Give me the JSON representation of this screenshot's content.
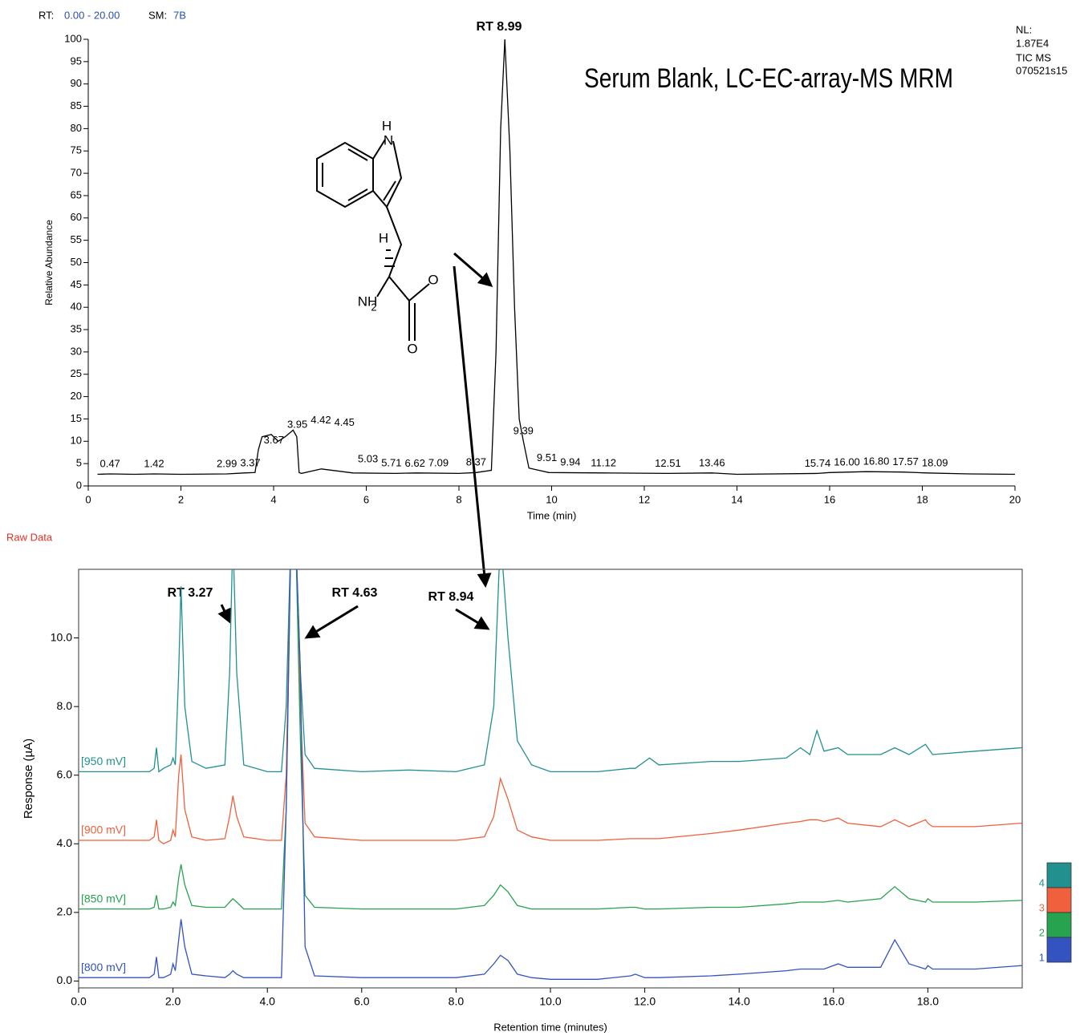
{
  "header": {
    "rt_label": "RT:",
    "rt_range": "0.00 - 20.00",
    "sm_label": "SM:",
    "sm_value": "7B"
  },
  "nl_info": [
    "NL:",
    "1.87E4",
    "TIC  MS",
    "070521s15"
  ],
  "raw_data": "Raw Data",
  "structure": {
    "atoms": [
      "H",
      "N",
      "H",
      "NH",
      "2",
      "O",
      "O"
    ]
  },
  "chart_data": [
    {
      "type": "line",
      "title": "Serum Blank, LC-EC-array-MS MRM",
      "x_label": "Time (min)",
      "y_label": "Relative Abundance",
      "xlim": [
        0,
        20
      ],
      "ylim": [
        0,
        100
      ],
      "xticks": [
        0,
        2,
        4,
        6,
        8,
        10,
        12,
        14,
        16,
        18,
        20
      ],
      "yticks": [
        0,
        5,
        10,
        15,
        20,
        25,
        30,
        35,
        40,
        45,
        50,
        55,
        60,
        65,
        70,
        75,
        80,
        85,
        90,
        95,
        100
      ],
      "annotations": [
        "RT 8.99"
      ],
      "peak_labels": [
        0.47,
        1.42,
        2.99,
        3.37,
        3.67,
        3.95,
        4.42,
        4.45,
        5.03,
        5.71,
        6.62,
        7.09,
        8.37,
        9.39,
        9.51,
        9.94,
        11.12,
        12.51,
        13.46,
        15.74,
        {
          "value": 16,
          "label": "16.00"
        },
        {
          "value": 16.8,
          "label": "16.80"
        },
        17.57,
        18.09
      ],
      "series": [
        {
          "color": "#000000",
          "x": [
            0.2,
            0.47,
            1,
            1.42,
            2,
            2.99,
            3.37,
            3.6,
            3.67,
            3.75,
            3.95,
            4.1,
            4.25,
            4.42,
            4.5,
            4.55,
            4.6,
            5.03,
            5.71,
            6.62,
            7.09,
            8.0,
            8.37,
            8.7,
            8.8,
            8.9,
            8.99,
            9.1,
            9.2,
            9.3,
            9.39,
            9.51,
            9.94,
            11.12,
            12.51,
            13.46,
            14.0,
            15.74,
            16.0,
            16.8,
            17.57,
            18.09,
            19.0,
            20
          ],
          "values": [
            2.6,
            2.7,
            2.6,
            2.7,
            2.6,
            2.7,
            2.9,
            3,
            8,
            11,
            11.5,
            10,
            11,
            12.5,
            11,
            3,
            2.8,
            3.8,
            2.9,
            2.8,
            2.9,
            2.8,
            3,
            3.5,
            30,
            80,
            100,
            75,
            40,
            15,
            10,
            4,
            3,
            2.9,
            2.8,
            2.9,
            2.6,
            2.8,
            3,
            3.2,
            3.1,
            2.9,
            2.7,
            2.6
          ]
        }
      ]
    },
    {
      "type": "line",
      "x_label": "Retention time (minutes)",
      "y_label": "Response (µA)",
      "xlim": [
        0,
        20
      ],
      "ylim": [
        -0.2,
        12
      ],
      "xticks": [
        {
          "value": 0,
          "label": "0.0"
        },
        {
          "value": 2,
          "label": "2.0"
        },
        {
          "value": 4,
          "label": "4.0"
        },
        {
          "value": 6,
          "label": "6.0"
        },
        {
          "value": 8,
          "label": "8.0"
        },
        {
          "value": 10,
          "label": "10.0"
        },
        {
          "value": 12,
          "label": "12.0"
        },
        {
          "value": 14,
          "label": "14.0"
        },
        {
          "value": 16,
          "label": "16.0"
        },
        {
          "value": 18,
          "label": "18.0"
        }
      ],
      "yticks": [
        {
          "value": 0,
          "label": "0.0"
        },
        {
          "value": 2,
          "label": "2.0"
        },
        {
          "value": 4,
          "label": "4.0"
        },
        {
          "value": 6,
          "label": "6.0"
        },
        {
          "value": 8,
          "label": "8.0"
        },
        {
          "value": 10,
          "label": "10.0"
        }
      ],
      "annotations": [
        "RT 3.27",
        "RT 4.63",
        "RT 8.94"
      ],
      "x": [
        0,
        1.5,
        1.6,
        1.65,
        1.7,
        1.8,
        1.95,
        2.0,
        2.05,
        2.12,
        2.17,
        2.25,
        2.4,
        2.7,
        3.1,
        3.2,
        3.27,
        3.35,
        3.5,
        4.0,
        4.3,
        4.4,
        4.5,
        4.6,
        4.7,
        4.8,
        5.0,
        6.0,
        7.0,
        8.0,
        8.6,
        8.8,
        8.94,
        9.1,
        9.3,
        9.6,
        10.0,
        11.0,
        11.7,
        11.8,
        12.0,
        12.1,
        12.3,
        13.4,
        14.0,
        15.0,
        15.3,
        15.5,
        15.65,
        15.8,
        16.1,
        16.3,
        17.0,
        17.3,
        17.6,
        17.95,
        18.0,
        18.1,
        19.0,
        19.99
      ],
      "series": [
        {
          "name": "[950 mV]",
          "channel": "4",
          "color": "#21908f",
          "values": [
            6.1,
            6.1,
            6.2,
            6.8,
            6.1,
            6.2,
            6.3,
            6.5,
            6.3,
            9,
            11.5,
            8,
            6.4,
            6.2,
            6.3,
            9,
            13,
            9,
            6.3,
            6.1,
            6.1,
            8,
            13,
            13,
            9,
            6.6,
            6.2,
            6.1,
            6.15,
            6.1,
            6.3,
            8,
            13,
            10,
            7,
            6.3,
            6.1,
            6.1,
            6.2,
            6.2,
            6.4,
            6.5,
            6.3,
            6.4,
            6.4,
            6.5,
            6.8,
            6.6,
            7.3,
            6.7,
            6.8,
            6.6,
            6.6,
            6.8,
            6.6,
            6.9,
            6.8,
            6.6,
            6.7,
            6.8
          ]
        },
        {
          "name": "[900 mV]",
          "channel": "3",
          "color": "#f0603c",
          "values": [
            4.1,
            4.1,
            4.2,
            4.7,
            4.1,
            4.0,
            4.1,
            4.4,
            4.2,
            6.0,
            6.6,
            5.0,
            4.2,
            4.1,
            4.15,
            4.8,
            5.4,
            4.8,
            4.2,
            4.1,
            4.1,
            6,
            13,
            13,
            8,
            4.6,
            4.2,
            4.1,
            4.1,
            4.1,
            4.2,
            4.8,
            5.9,
            5.3,
            4.4,
            4.2,
            4.1,
            4.1,
            4.15,
            4.15,
            4.15,
            4.15,
            4.15,
            4.3,
            4.4,
            4.6,
            4.65,
            4.7,
            4.7,
            4.65,
            4.75,
            4.6,
            4.5,
            4.7,
            4.5,
            4.7,
            4.6,
            4.5,
            4.5,
            4.6
          ]
        },
        {
          "name": "[850 mV]",
          "channel": "2",
          "color": "#27a24f",
          "values": [
            2.1,
            2.1,
            2.15,
            2.5,
            2.1,
            2.1,
            2.15,
            2.3,
            2.2,
            3.0,
            3.4,
            2.8,
            2.2,
            2.15,
            2.15,
            2.3,
            2.4,
            2.3,
            2.1,
            2.1,
            2.1,
            5,
            13,
            13,
            7,
            2.5,
            2.15,
            2.1,
            2.1,
            2.1,
            2.2,
            2.5,
            2.8,
            2.6,
            2.2,
            2.1,
            2.1,
            2.1,
            2.15,
            2.15,
            2.1,
            2.1,
            2.1,
            2.15,
            2.15,
            2.25,
            2.3,
            2.3,
            2.3,
            2.3,
            2.35,
            2.3,
            2.4,
            2.75,
            2.4,
            2.3,
            2.4,
            2.3,
            2.3,
            2.35
          ]
        },
        {
          "name": "[800 mV]",
          "channel": "1",
          "color": "#3253c0",
          "values": [
            0.1,
            0.1,
            0.2,
            0.7,
            0.1,
            0.1,
            0.2,
            0.5,
            0.3,
            1.2,
            1.8,
            1.0,
            0.2,
            0.15,
            0.1,
            0.2,
            0.3,
            0.2,
            0.1,
            0.1,
            0.1,
            5,
            13,
            13,
            9,
            1,
            0.15,
            0.1,
            0.1,
            0.1,
            0.2,
            0.5,
            0.75,
            0.6,
            0.2,
            0.1,
            0.05,
            0.05,
            0.15,
            0.2,
            0.1,
            0.1,
            0.1,
            0.15,
            0.2,
            0.3,
            0.35,
            0.35,
            0.35,
            0.35,
            0.5,
            0.4,
            0.4,
            1.2,
            0.5,
            0.35,
            0.45,
            0.35,
            0.35,
            0.45
          ]
        }
      ]
    }
  ]
}
